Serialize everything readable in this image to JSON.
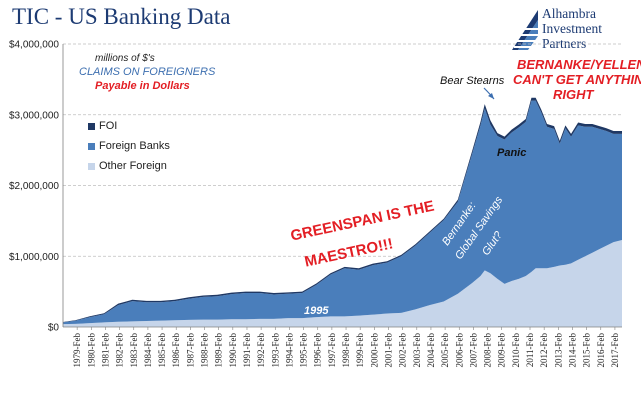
{
  "chart_data": {
    "type": "area",
    "title": "TIC - US Banking Data",
    "y_tick_labels": [
      "$0",
      "$1,000,000",
      "$2,000,000",
      "$3,000,000",
      "$4,000,000"
    ],
    "ylim": [
      0,
      4000000
    ],
    "grid": "horizontal dashed",
    "x_tick_labels": [
      "1979-Feb",
      "1980-Feb",
      "1981-Feb",
      "1982-Feb",
      "1983-Feb",
      "1984-Feb",
      "1985-Feb",
      "1986-Feb",
      "1987-Feb",
      "1988-Feb",
      "1989-Feb",
      "1990-Feb",
      "1991-Feb",
      "1992-Feb",
      "1993-Feb",
      "1994-Feb",
      "1995-Feb",
      "1996-Feb",
      "1997-Feb",
      "1998-Feb",
      "1999-Feb",
      "2000-Feb",
      "2001-Feb",
      "2002-Feb",
      "2003-Feb",
      "2004-Feb",
      "2005-Feb",
      "2006-Feb",
      "2007-Feb",
      "2008-Feb",
      "2009-Feb",
      "2010-Feb",
      "2011-Feb",
      "2012-Feb",
      "2013-Feb",
      "2014-Feb",
      "2015-Feb",
      "2016-Feb",
      "2017-Feb"
    ],
    "x": [
      1978.1,
      1979,
      1980,
      1981,
      1982,
      1983,
      1984,
      1985,
      1986,
      1987,
      1988,
      1989,
      1990,
      1991,
      1992,
      1993,
      1994,
      1995,
      1996,
      1997,
      1998,
      1999,
      2000,
      2001,
      2002,
      2003,
      2004,
      2005,
      2006,
      2007,
      2007.6,
      2007.9,
      2008.3,
      2008.8,
      2009.3,
      2009.8,
      2010.3,
      2010.8,
      2011.2,
      2011.5,
      2011.9,
      2012.3,
      2012.8,
      2013.2,
      2013.6,
      2014,
      2014.5,
      2015,
      2015.5,
      2016,
      2016.5,
      2017,
      2017.6
    ],
    "series": [
      {
        "name": "Other Foreign",
        "color": "#c6d5ea",
        "values": [
          40000,
          45000,
          55000,
          65000,
          75000,
          80000,
          85000,
          90000,
          95000,
          100000,
          105000,
          105000,
          110000,
          110000,
          115000,
          115000,
          125000,
          125000,
          140000,
          150000,
          150000,
          160000,
          175000,
          190000,
          200000,
          250000,
          310000,
          360000,
          470000,
          620000,
          720000,
          800000,
          760000,
          680000,
          610000,
          650000,
          680000,
          720000,
          780000,
          830000,
          830000,
          830000,
          850000,
          870000,
          880000,
          900000,
          950000,
          1000000,
          1050000,
          1100000,
          1150000,
          1200000,
          1230000
        ]
      },
      {
        "name": "Foreign Banks",
        "color": "#4a7ebb",
        "values": [
          25000,
          45000,
          85000,
          115000,
          235000,
          285000,
          265000,
          260000,
          270000,
          300000,
          320000,
          330000,
          355000,
          370000,
          365000,
          345000,
          345000,
          355000,
          455000,
          590000,
          680000,
          650000,
          700000,
          720000,
          800000,
          900000,
          1020000,
          1150000,
          1300000,
          1820000,
          2130000,
          2290000,
          2100000,
          2020000,
          2040000,
          2100000,
          2140000,
          2180000,
          2420000,
          2370000,
          2200000,
          2000000,
          1950000,
          1720000,
          1930000,
          1790000,
          1900000,
          1830000,
          1780000,
          1700000,
          1620000,
          1530000,
          1500000
        ]
      },
      {
        "name": "FOI",
        "color": "#1f3864",
        "values": [
          5000,
          8000,
          12000,
          15000,
          20000,
          20000,
          20000,
          20000,
          20000,
          20000,
          20000,
          20000,
          20000,
          20000,
          20000,
          20000,
          20000,
          20000,
          20000,
          20000,
          20000,
          20000,
          20000,
          20000,
          20000,
          20000,
          20000,
          20000,
          30000,
          40000,
          50000,
          60000,
          60000,
          40000,
          40000,
          40000,
          40000,
          40000,
          40000,
          40000,
          40000,
          40000,
          40000,
          40000,
          40000,
          40000,
          40000,
          40000,
          40000,
          40000,
          40000,
          40000,
          40000
        ]
      }
    ],
    "legend_position": "left"
  },
  "logo": {
    "line1": "Alhambra",
    "line2": "Investment",
    "line3": "Partners"
  },
  "annotations": {
    "millions": "millions of $'s",
    "claims": "CLAIMS  ON FOREIGNERS",
    "payable": "Payable in Dollars",
    "bear_stearns": "Bear Stearns",
    "panic": "Panic",
    "bernanke_yellen_1": "BERNANKE/YELLEN",
    "bernanke_yellen_2": "CAN'T GET ANYTHING",
    "bernanke_yellen_3": "RIGHT",
    "greenspan_1": "GREENSPAN IS THE",
    "greenspan_2": "MAESTRO!!!",
    "bernanke_glut_1": "Bernanke:",
    "bernanke_glut_2": "Global Savings",
    "bernanke_glut_3": "Glut?",
    "year_1995": "1995"
  },
  "colors": {
    "title": "#1d3b73",
    "red_text": "#e31e24",
    "blue_text": "#3d6fb0",
    "grid": "#bfbfbf"
  }
}
